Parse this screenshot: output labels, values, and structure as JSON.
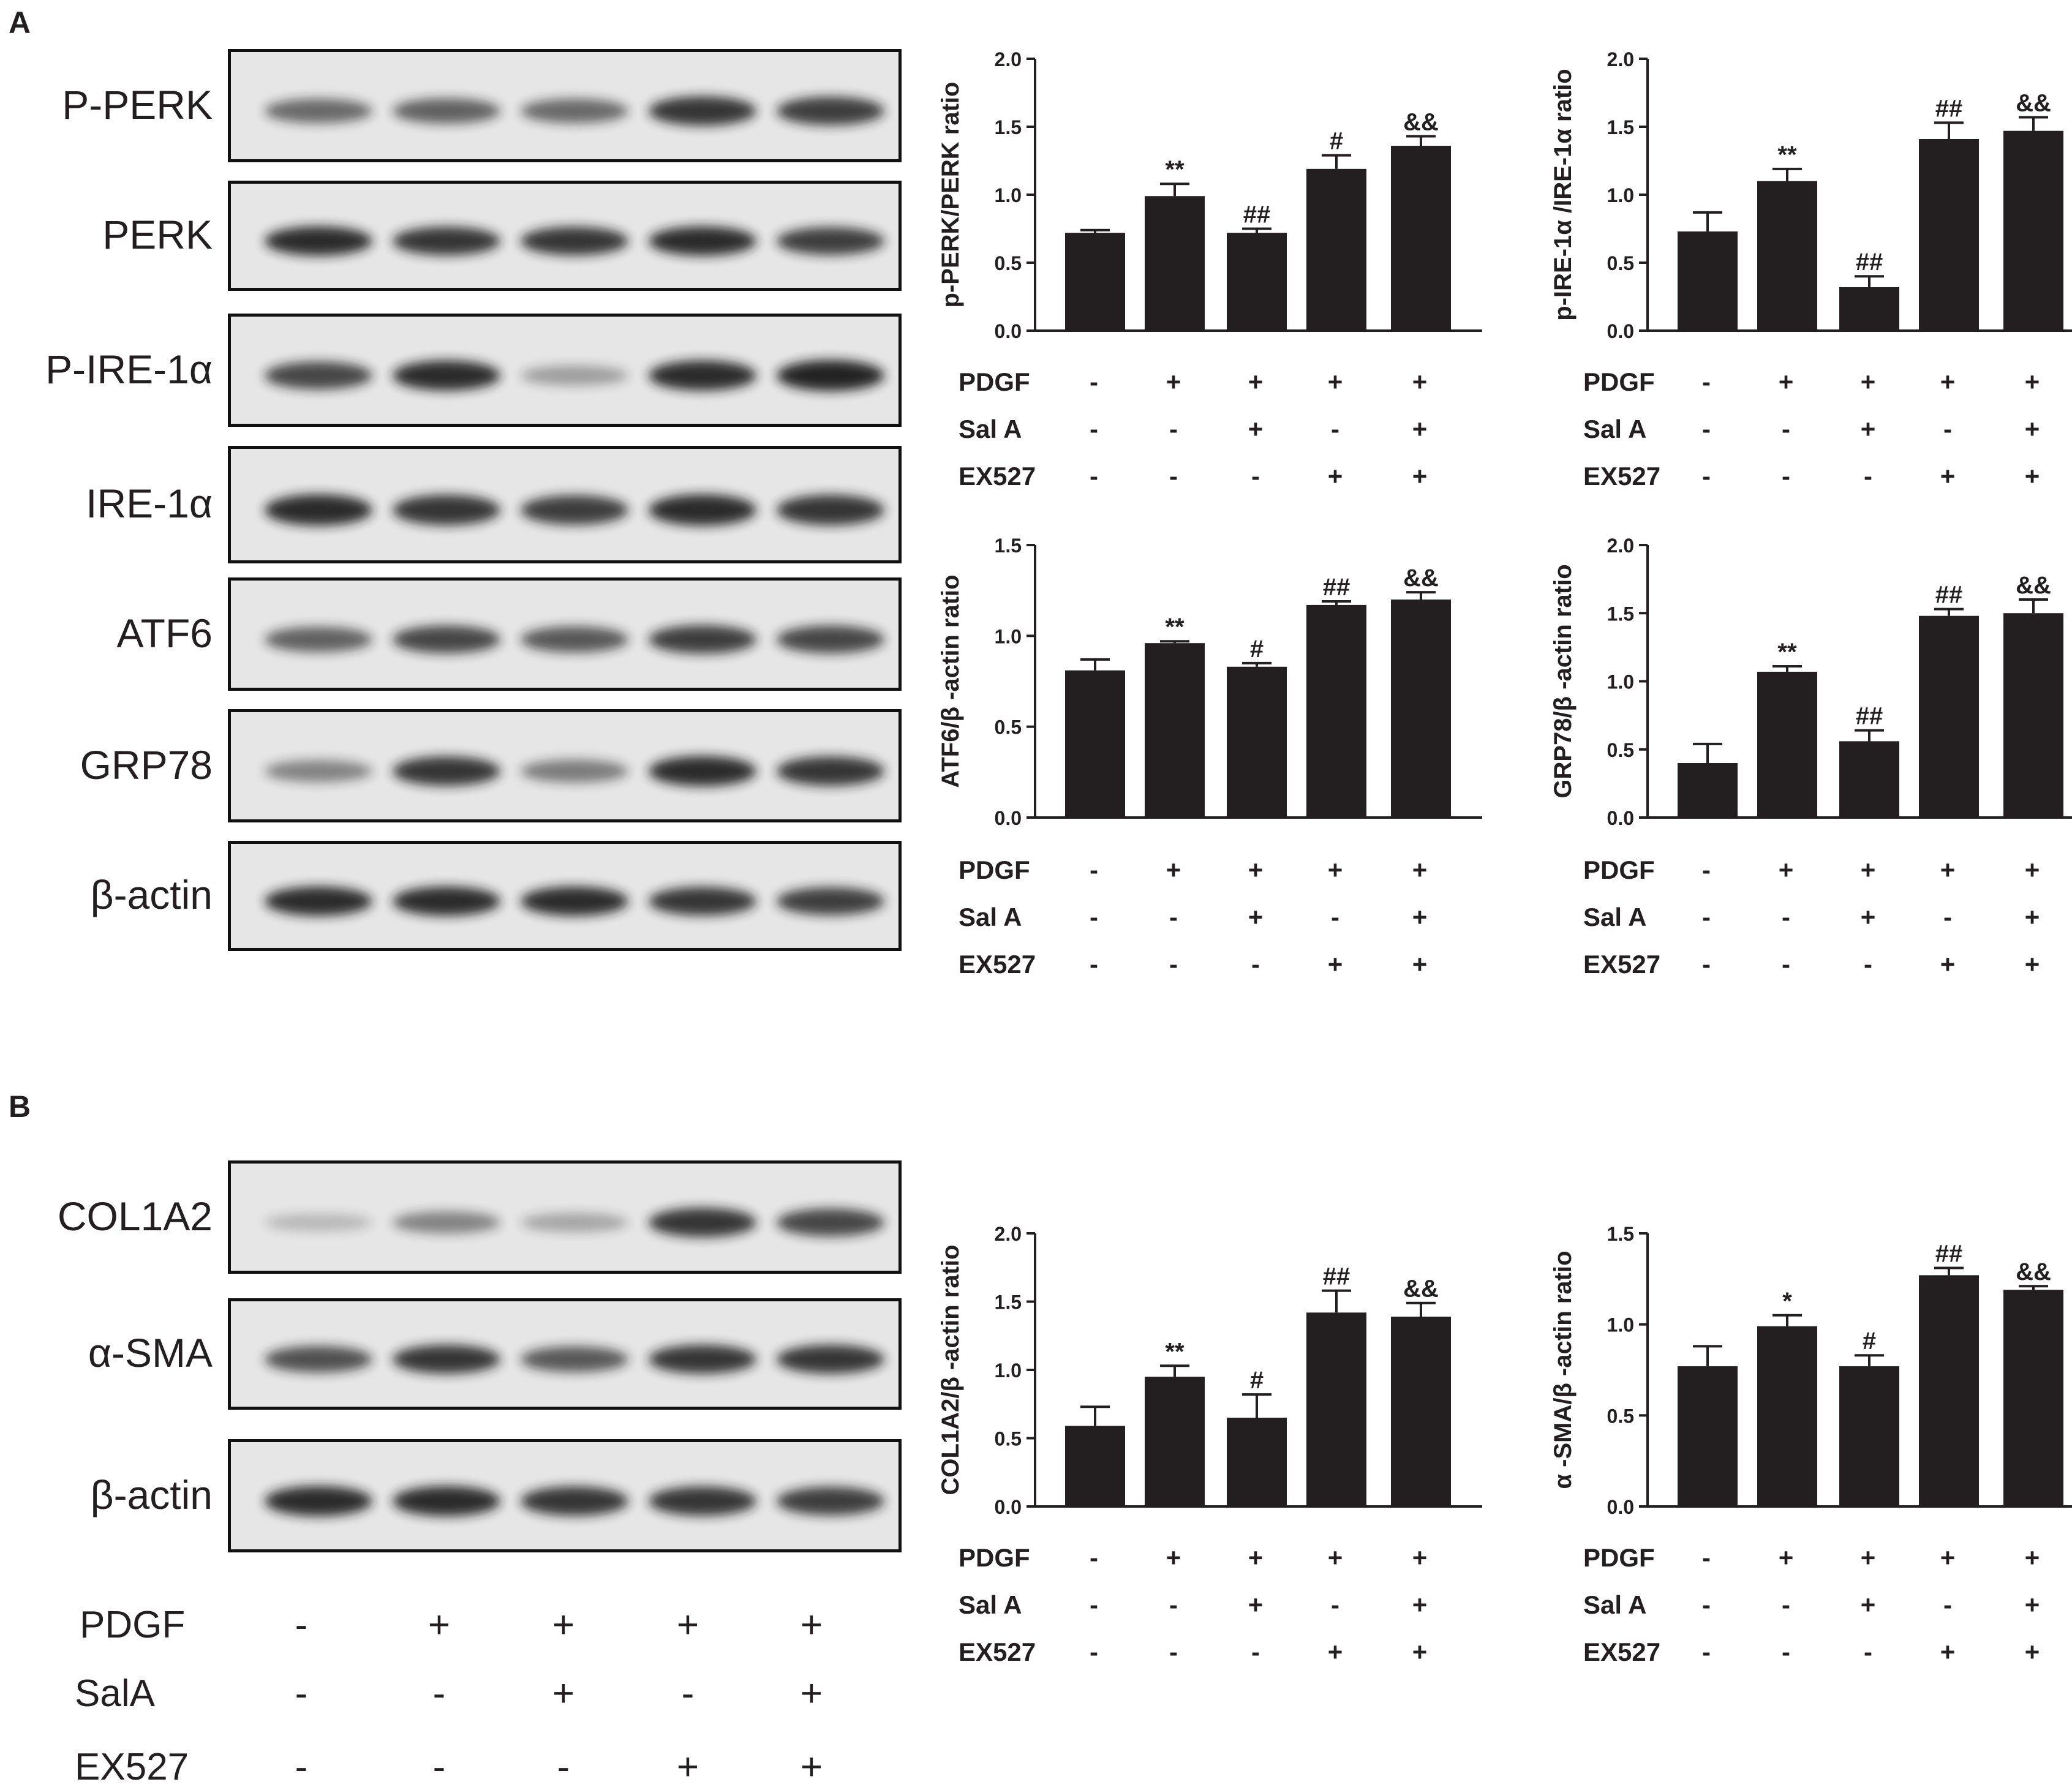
{
  "panels": {
    "A": {
      "letter": "A",
      "blots": [
        {
          "label": "P-PERK",
          "bands": [
            0.55,
            0.6,
            0.55,
            0.85,
            0.8
          ]
        },
        {
          "label": "PERK",
          "bands": [
            0.9,
            0.85,
            0.85,
            0.9,
            0.8
          ]
        },
        {
          "label": "P-IRE-1α",
          "bands": [
            0.75,
            0.9,
            0.25,
            0.9,
            0.95
          ]
        },
        {
          "label": "IRE-1α",
          "bands": [
            0.9,
            0.85,
            0.8,
            0.9,
            0.85
          ]
        },
        {
          "label": "ATF6",
          "bands": [
            0.6,
            0.75,
            0.65,
            0.8,
            0.75
          ]
        },
        {
          "label": "GRP78",
          "bands": [
            0.4,
            0.85,
            0.45,
            0.9,
            0.85
          ]
        },
        {
          "label": "β-actin",
          "bands": [
            0.9,
            0.9,
            0.9,
            0.85,
            0.8
          ]
        }
      ]
    },
    "B": {
      "letter": "B",
      "blots": [
        {
          "label": "COL1A2",
          "bands": [
            0.1,
            0.4,
            0.2,
            0.85,
            0.75
          ]
        },
        {
          "label": "α-SMA",
          "bands": [
            0.7,
            0.85,
            0.65,
            0.85,
            0.85
          ]
        },
        {
          "label": "β-actin",
          "bands": [
            0.9,
            0.9,
            0.85,
            0.85,
            0.8
          ]
        }
      ],
      "treatment": {
        "labels": [
          "PDGF",
          "SalA",
          "EX527"
        ],
        "rows": [
          [
            "-",
            "+",
            "+",
            "+",
            "+"
          ],
          [
            "-",
            "-",
            "+",
            "-",
            "+"
          ],
          [
            "-",
            "-",
            "-",
            "+",
            "+"
          ]
        ]
      }
    }
  },
  "chart_data": [
    {
      "type": "bar",
      "ylabel": "p-PERK/PERK ratio",
      "ylim": [
        0,
        2.0
      ],
      "yticks": [
        "0.0",
        "0.5",
        "1.0",
        "1.5",
        "2.0"
      ],
      "values": [
        0.72,
        0.99,
        0.72,
        1.19,
        1.36
      ],
      "errors": [
        0.02,
        0.09,
        0.03,
        0.1,
        0.07
      ],
      "annotations": [
        "",
        "**",
        "##",
        "#",
        "&&"
      ],
      "treatment": {
        "labels": [
          "PDGF",
          "Sal A",
          "EX527"
        ],
        "rows": [
          [
            "-",
            "+",
            "+",
            "+",
            "+"
          ],
          [
            "-",
            "-",
            "+",
            "-",
            "+"
          ],
          [
            "-",
            "-",
            "-",
            "+",
            "+"
          ]
        ]
      }
    },
    {
      "type": "bar",
      "ylabel": "p-IRE-1α /IRE-1α  ratio",
      "ylim": [
        0,
        2.0
      ],
      "yticks": [
        "0.0",
        "0.5",
        "1.0",
        "1.5",
        "2.0"
      ],
      "values": [
        0.73,
        1.1,
        0.32,
        1.41,
        1.47
      ],
      "errors": [
        0.14,
        0.09,
        0.08,
        0.12,
        0.1
      ],
      "annotations": [
        "",
        "**",
        "##",
        "##",
        "&&"
      ],
      "treatment": {
        "labels": [
          "PDGF",
          "Sal A",
          "EX527"
        ],
        "rows": [
          [
            "-",
            "+",
            "+",
            "+",
            "+"
          ],
          [
            "-",
            "-",
            "+",
            "-",
            "+"
          ],
          [
            "-",
            "-",
            "-",
            "+",
            "+"
          ]
        ]
      }
    },
    {
      "type": "bar",
      "ylabel": "ATF6/β -actin ratio",
      "ylim": [
        0,
        1.5
      ],
      "yticks": [
        "0.0",
        "0.5",
        "1.0",
        "1.5"
      ],
      "values": [
        0.81,
        0.96,
        0.83,
        1.17,
        1.2
      ],
      "errors": [
        0.06,
        0.01,
        0.02,
        0.02,
        0.04
      ],
      "annotations": [
        "",
        "**",
        "#",
        "##",
        "&&"
      ],
      "treatment": {
        "labels": [
          "PDGF",
          "Sal A",
          "EX527"
        ],
        "rows": [
          [
            "-",
            "+",
            "+",
            "+",
            "+"
          ],
          [
            "-",
            "-",
            "+",
            "-",
            "+"
          ],
          [
            "-",
            "-",
            "-",
            "+",
            "+"
          ]
        ]
      }
    },
    {
      "type": "bar",
      "ylabel": "GRP78/β -actin ratio",
      "ylim": [
        0,
        2.0
      ],
      "yticks": [
        "0.0",
        "0.5",
        "1.0",
        "1.5",
        "2.0"
      ],
      "values": [
        0.4,
        1.07,
        0.56,
        1.48,
        1.5
      ],
      "errors": [
        0.14,
        0.04,
        0.08,
        0.05,
        0.1
      ],
      "annotations": [
        "",
        "**",
        "##",
        "##",
        "&&"
      ],
      "treatment": {
        "labels": [
          "PDGF",
          "Sal A",
          "EX527"
        ],
        "rows": [
          [
            "-",
            "+",
            "+",
            "+",
            "+"
          ],
          [
            "-",
            "-",
            "+",
            "-",
            "+"
          ],
          [
            "-",
            "-",
            "-",
            "+",
            "+"
          ]
        ]
      }
    },
    {
      "type": "bar",
      "ylabel": "COL1A2/β -actin ratio",
      "ylim": [
        0,
        2.0
      ],
      "yticks": [
        "0.0",
        "0.5",
        "1.0",
        "1.5",
        "2.0"
      ],
      "values": [
        0.59,
        0.95,
        0.65,
        1.42,
        1.39
      ],
      "errors": [
        0.14,
        0.08,
        0.17,
        0.16,
        0.1
      ],
      "annotations": [
        "",
        "**",
        "#",
        "##",
        "&&"
      ],
      "treatment": {
        "labels": [
          "PDGF",
          "Sal A",
          "EX527"
        ],
        "rows": [
          [
            "-",
            "+",
            "+",
            "+",
            "+"
          ],
          [
            "-",
            "-",
            "+",
            "-",
            "+"
          ],
          [
            "-",
            "-",
            "-",
            "+",
            "+"
          ]
        ]
      }
    },
    {
      "type": "bar",
      "ylabel": "α -SMA/β -actin ratio",
      "ylim": [
        0,
        1.5
      ],
      "yticks": [
        "0.0",
        "0.5",
        "1.0",
        "1.5"
      ],
      "values": [
        0.77,
        0.99,
        0.77,
        1.27,
        1.19
      ],
      "errors": [
        0.11,
        0.06,
        0.06,
        0.04,
        0.02
      ],
      "annotations": [
        "",
        "*",
        "#",
        "##",
        "&&"
      ],
      "treatment": {
        "labels": [
          "PDGF",
          "Sal A",
          "EX527"
        ],
        "rows": [
          [
            "-",
            "+",
            "+",
            "+",
            "+"
          ],
          [
            "-",
            "-",
            "+",
            "-",
            "+"
          ],
          [
            "-",
            "-",
            "-",
            "+",
            "+"
          ]
        ]
      }
    }
  ]
}
